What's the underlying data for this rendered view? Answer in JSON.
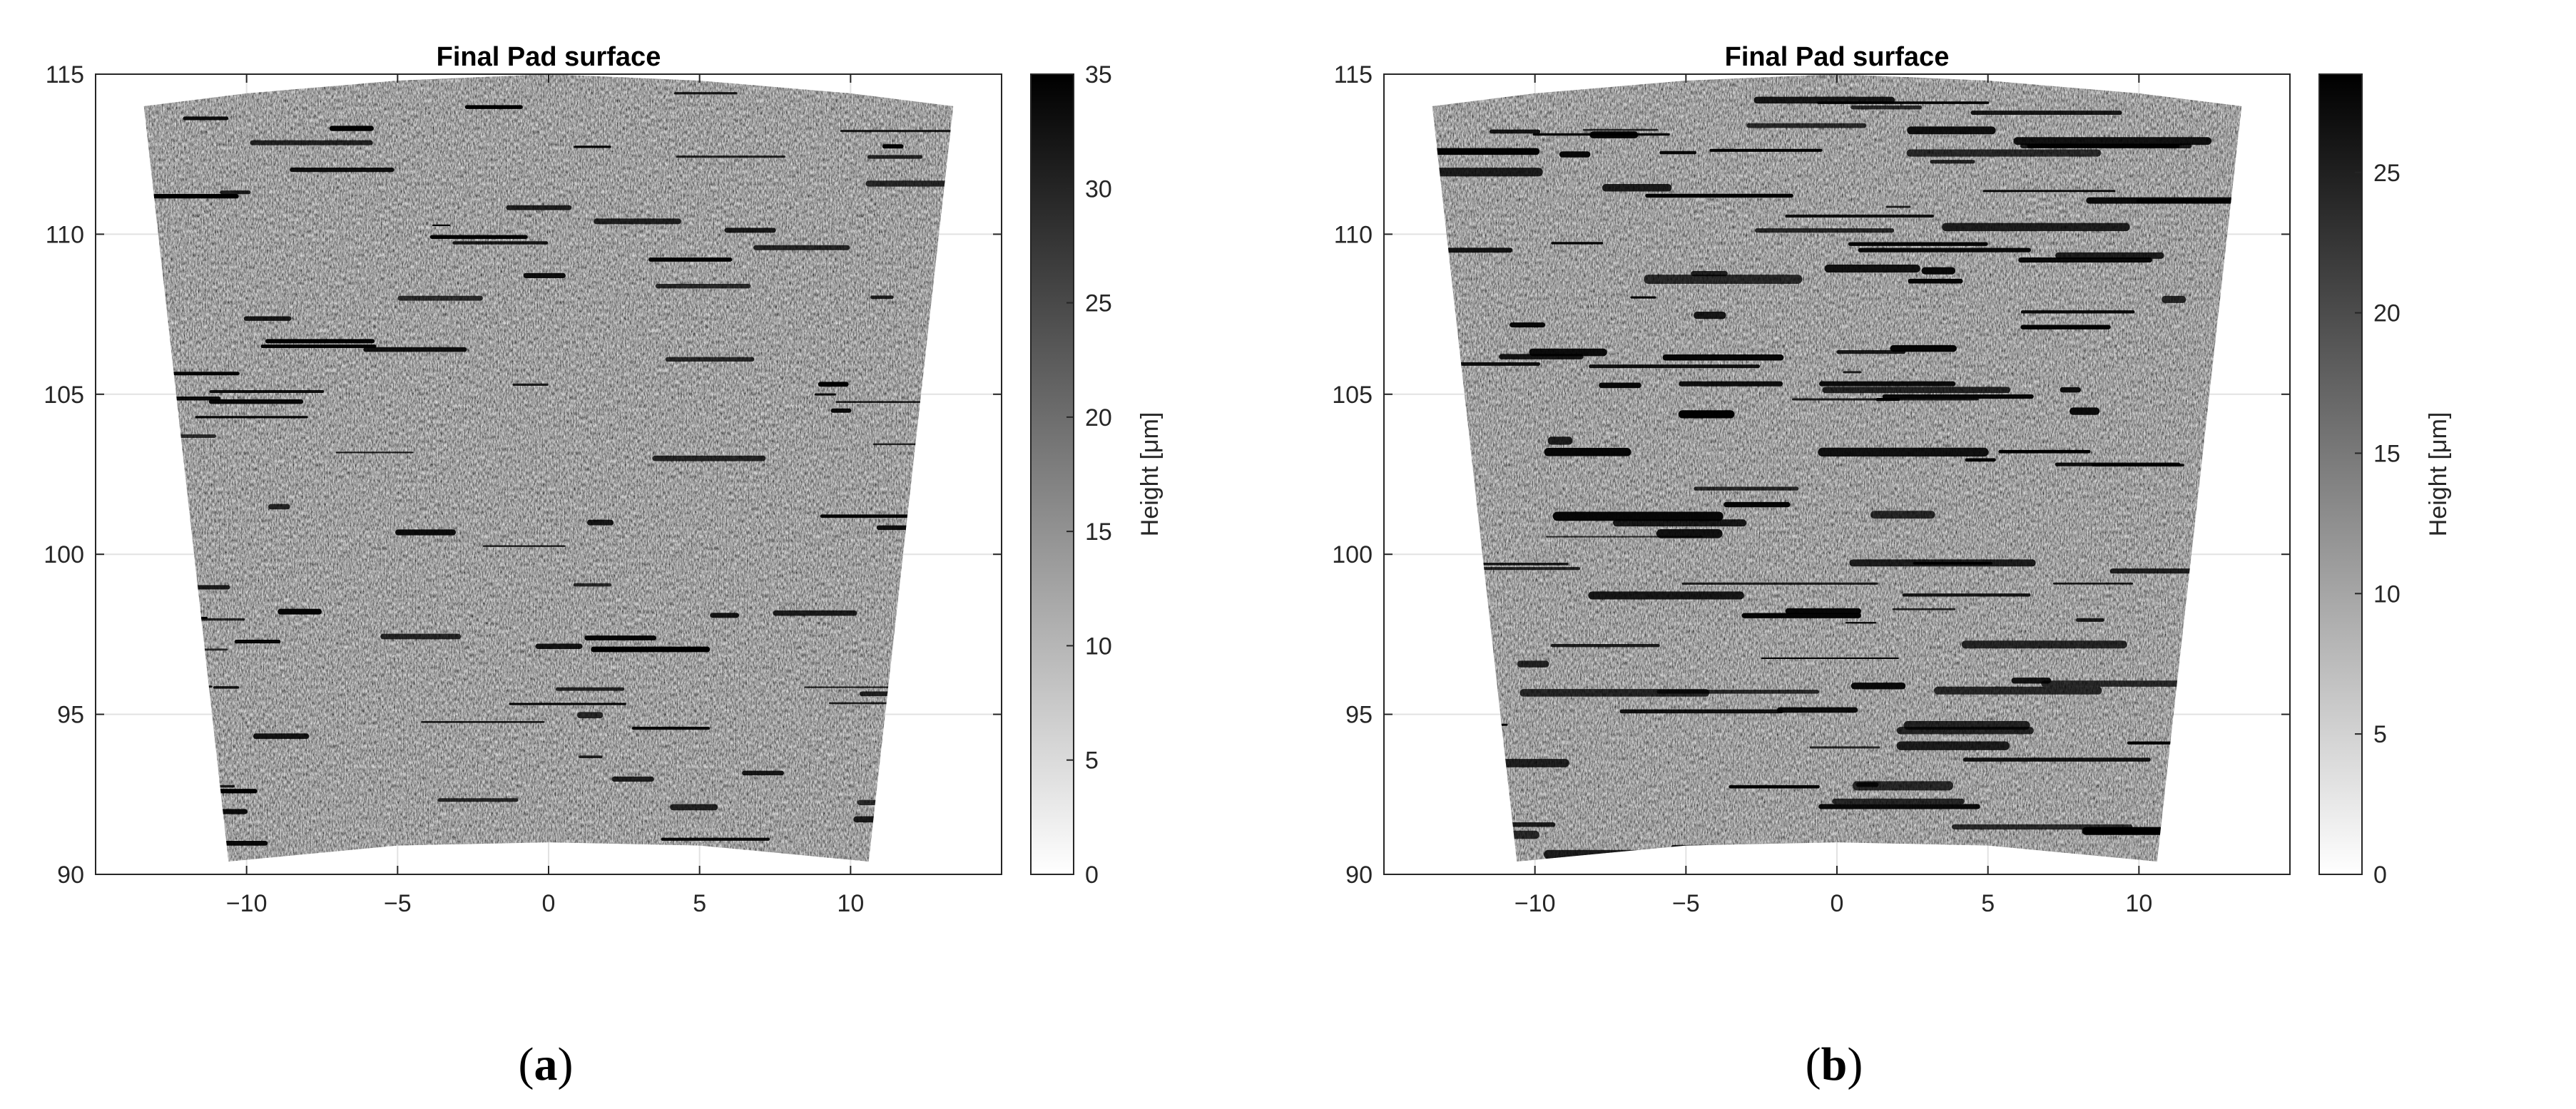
{
  "chart_data": [
    {
      "type": "heatmap",
      "panel_label": "a",
      "title": "Final Pad surface",
      "xlabel": "",
      "ylabel": "",
      "xlim": [
        -15,
        15
      ],
      "ylim": [
        90,
        115
      ],
      "x_ticks": [
        -10,
        -5,
        0,
        5,
        10
      ],
      "y_ticks": [
        90,
        95,
        100,
        105,
        110,
        115
      ],
      "grid": true,
      "colormap": "gray-reversed",
      "colorbar": {
        "label": "Height [μm]",
        "min": 0,
        "max": 35,
        "ticks": [
          0,
          5,
          10,
          15,
          20,
          25,
          30,
          35
        ]
      },
      "annular_sector": {
        "outer_radius_edge": [
          [
            -13.4,
            114.0
          ],
          [
            -10,
            114.4
          ],
          [
            -5,
            114.8
          ],
          [
            0,
            115.0
          ],
          [
            5,
            114.8
          ],
          [
            10,
            114.4
          ],
          [
            13.4,
            114.0
          ]
        ],
        "inner_radius_edge": [
          [
            -10.6,
            90.4
          ],
          [
            -5,
            90.9
          ],
          [
            0,
            91.0
          ],
          [
            5,
            90.9
          ],
          [
            10.6,
            90.4
          ]
        ]
      }
    },
    {
      "type": "heatmap",
      "panel_label": "b",
      "title": "Final Pad surface",
      "xlabel": "",
      "ylabel": "",
      "xlim": [
        -15,
        15
      ],
      "ylim": [
        90,
        115
      ],
      "x_ticks": [
        -10,
        -5,
        0,
        5,
        10
      ],
      "y_ticks": [
        90,
        95,
        100,
        105,
        110,
        115
      ],
      "grid": true,
      "colormap": "gray-reversed",
      "colorbar": {
        "label": "Height [μm]",
        "min": 0,
        "max": 28.5,
        "ticks": [
          0,
          5,
          10,
          15,
          20,
          25
        ]
      },
      "annular_sector": {
        "outer_radius_edge": [
          [
            -13.4,
            114.0
          ],
          [
            -10,
            114.4
          ],
          [
            -5,
            114.8
          ],
          [
            0,
            115.0
          ],
          [
            5,
            114.8
          ],
          [
            10,
            114.4
          ],
          [
            13.4,
            114.0
          ]
        ],
        "inner_radius_edge": [
          [
            -10.6,
            90.4
          ],
          [
            -5,
            90.9
          ],
          [
            0,
            91.0
          ],
          [
            5,
            90.9
          ],
          [
            10.6,
            90.4
          ]
        ]
      }
    }
  ]
}
